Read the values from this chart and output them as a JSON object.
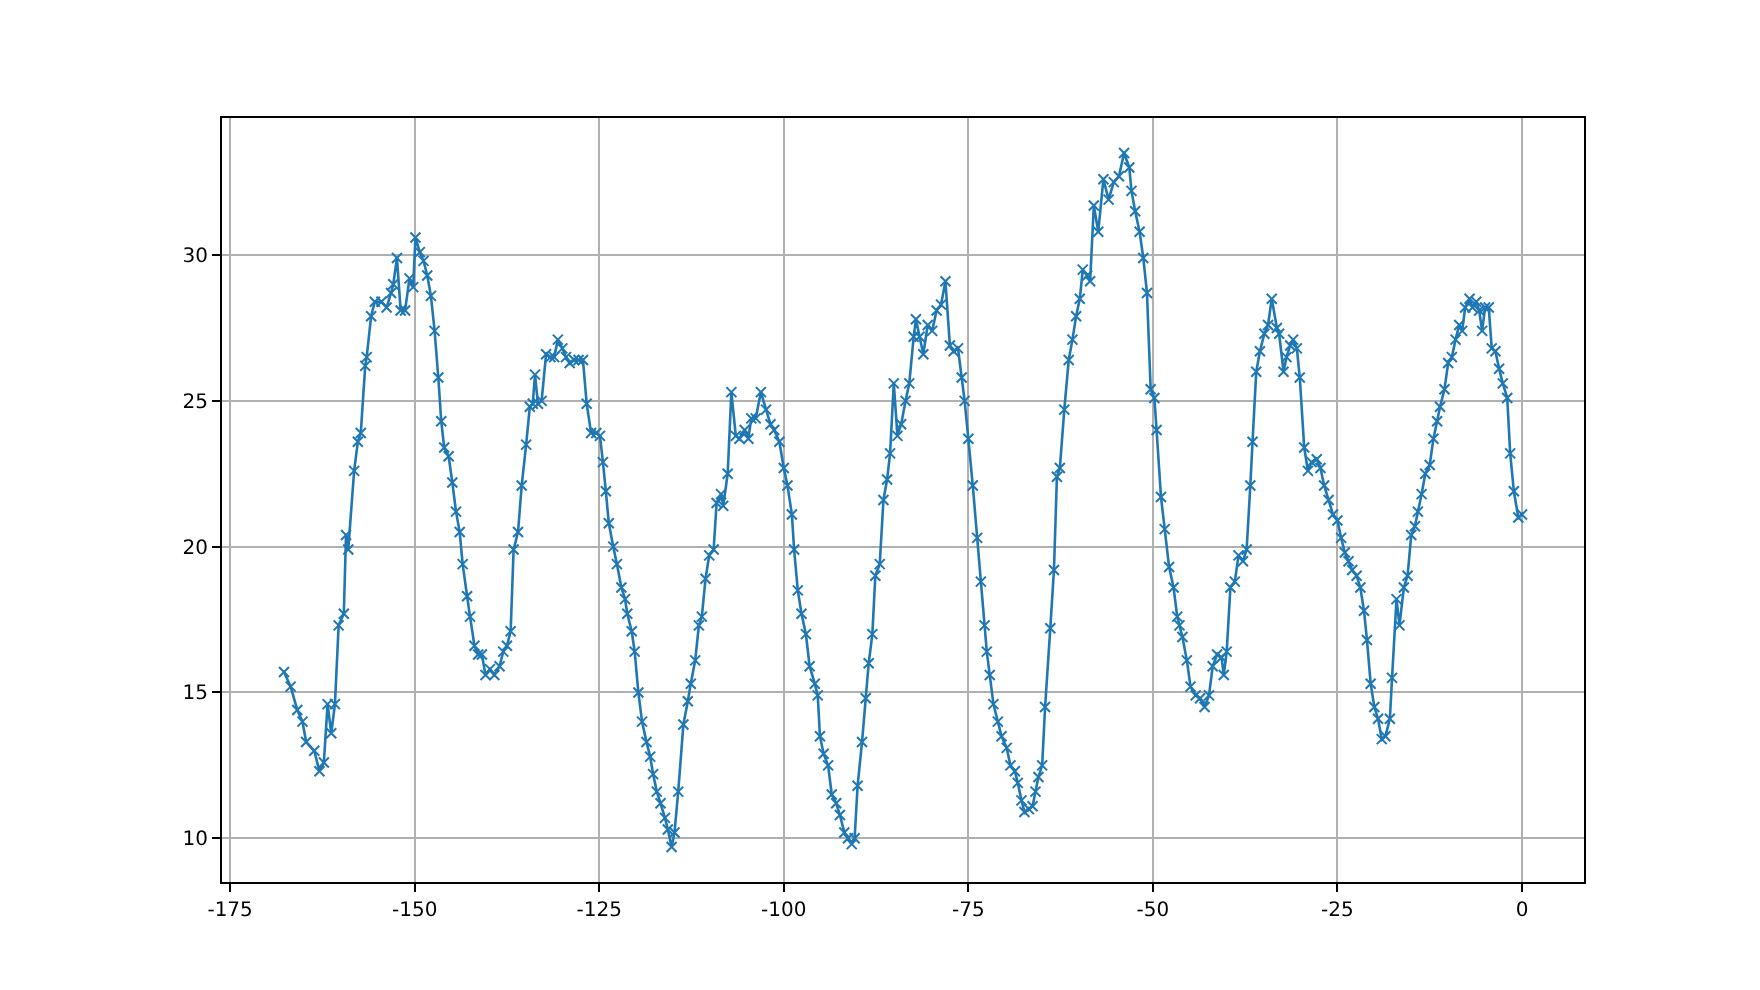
{
  "chart_data": {
    "type": "line",
    "marker": "cross",
    "line_style": "solid",
    "grid": true,
    "xlim": [
      -176.1,
      8.4
    ],
    "ylim": [
      8.5,
      34.7
    ],
    "xticks": [
      -175,
      -150,
      -125,
      -100,
      -75,
      -50,
      -25,
      0
    ],
    "yticks": [
      10,
      15,
      20,
      25,
      30
    ],
    "series": [
      {
        "color": "#1f77b4",
        "x": [
          -167.7,
          -166.8,
          -165.9,
          -165.2,
          -164.7,
          -163.6,
          -162.9,
          -162.3,
          -161.8,
          -161.3,
          -160.8,
          -160.3,
          -159.6,
          -159.3,
          -159.0,
          -158.2,
          -157.7,
          -157.3,
          -156.7,
          -156.5,
          -155.9,
          -155.4,
          -154.5,
          -153.8,
          -153.2,
          -152.9,
          -152.4,
          -151.9,
          -151.3,
          -150.7,
          -150.2,
          -149.9,
          -149.3,
          -148.8,
          -148.3,
          -147.8,
          -147.3,
          -146.8,
          -146.4,
          -146.0,
          -145.4,
          -144.9,
          -144.4,
          -143.9,
          -143.5,
          -142.9,
          -142.5,
          -141.9,
          -141.4,
          -140.9,
          -140.4,
          -139.8,
          -139.2,
          -138.5,
          -138.0,
          -137.5,
          -137.0,
          -136.6,
          -136.0,
          -135.5,
          -134.9,
          -134.4,
          -134.0,
          -133.7,
          -133.3,
          -132.8,
          -132.2,
          -131.6,
          -131.1,
          -130.6,
          -130.0,
          -129.5,
          -129.0,
          -128.4,
          -127.8,
          -127.2,
          -126.7,
          -126.1,
          -125.4,
          -124.9,
          -124.5,
          -124.1,
          -123.7,
          -123.1,
          -122.6,
          -122.0,
          -121.5,
          -121.2,
          -120.6,
          -120.2,
          -119.7,
          -119.2,
          -118.6,
          -118.1,
          -117.7,
          -117.2,
          -116.7,
          -116.1,
          -115.7,
          -115.2,
          -114.8,
          -114.3,
          -113.6,
          -113.0,
          -112.6,
          -112.0,
          -111.5,
          -111.1,
          -110.6,
          -110.1,
          -109.5,
          -109.1,
          -108.5,
          -108.2,
          -107.6,
          -107.1,
          -106.5,
          -106.0,
          -105.3,
          -104.8,
          -104.4,
          -103.8,
          -103.1,
          -102.4,
          -101.8,
          -101.3,
          -100.6,
          -100.0,
          -99.5,
          -98.9,
          -98.6,
          -98.1,
          -97.6,
          -97.0,
          -96.5,
          -95.8,
          -95.4,
          -95.1,
          -94.6,
          -94.0,
          -93.5,
          -92.9,
          -92.4,
          -91.8,
          -91.3,
          -90.8,
          -90.4,
          -90.0,
          -89.4,
          -88.9,
          -88.5,
          -88.0,
          -87.6,
          -87.0,
          -86.5,
          -86.0,
          -85.6,
          -85.1,
          -84.6,
          -84.1,
          -83.5,
          -83.0,
          -82.4,
          -82.1,
          -81.6,
          -81.1,
          -80.5,
          -79.9,
          -79.3,
          -78.7,
          -78.1,
          -77.5,
          -77.0,
          -76.4,
          -75.9,
          -75.5,
          -75.0,
          -74.4,
          -73.8,
          -73.3,
          -72.8,
          -72.5,
          -72.1,
          -71.6,
          -71.0,
          -70.5,
          -69.8,
          -69.3,
          -68.7,
          -68.3,
          -67.8,
          -67.4,
          -66.8,
          -66.3,
          -65.9,
          -65.5,
          -65.0,
          -64.6,
          -63.9,
          -63.4,
          -63.0,
          -62.6,
          -62.0,
          -61.4,
          -60.9,
          -60.4,
          -59.9,
          -59.5,
          -58.9,
          -58.5,
          -58.0,
          -57.4,
          -56.7,
          -56.0,
          -55.3,
          -54.6,
          -53.9,
          -53.2,
          -52.9,
          -52.4,
          -51.8,
          -51.3,
          -50.8,
          -50.3,
          -49.8,
          -49.5,
          -48.9,
          -48.4,
          -47.8,
          -47.2,
          -46.7,
          -46.4,
          -46.0,
          -45.4,
          -44.9,
          -44.2,
          -43.6,
          -43.0,
          -42.4,
          -41.9,
          -41.3,
          -40.7,
          -40.4,
          -40.0,
          -39.5,
          -38.9,
          -38.4,
          -37.8,
          -37.3,
          -36.8,
          -36.5,
          -36.0,
          -35.5,
          -34.9,
          -34.4,
          -33.9,
          -33.2,
          -32.9,
          -32.3,
          -31.9,
          -31.4,
          -31.0,
          -30.5,
          -30.1,
          -29.5,
          -29.0,
          -28.5,
          -27.8,
          -27.3,
          -26.8,
          -26.2,
          -25.6,
          -25.0,
          -24.5,
          -24.0,
          -23.5,
          -23.0,
          -22.4,
          -21.9,
          -21.4,
          -21.0,
          -20.5,
          -20.0,
          -19.5,
          -19.0,
          -18.5,
          -17.9,
          -17.6,
          -17.0,
          -16.6,
          -16.0,
          -15.5,
          -15.0,
          -14.5,
          -14.1,
          -13.6,
          -13.1,
          -12.5,
          -12.0,
          -11.5,
          -11.1,
          -10.5,
          -10.0,
          -9.5,
          -9.0,
          -8.5,
          -8.1,
          -7.7,
          -7.1,
          -6.7,
          -6.2,
          -5.8,
          -5.4,
          -5.0,
          -4.5,
          -4.1,
          -3.6,
          -3.1,
          -2.6,
          -2.0,
          -1.6,
          -1.1,
          -0.5,
          0.0
        ],
        "values": [
          15.7,
          15.2,
          14.4,
          14.0,
          13.3,
          13.0,
          12.3,
          12.6,
          14.6,
          13.6,
          14.6,
          17.3,
          17.7,
          20.4,
          19.9,
          22.6,
          23.6,
          23.9,
          26.2,
          26.5,
          27.9,
          28.4,
          28.4,
          28.2,
          28.7,
          29.0,
          29.9,
          28.1,
          28.1,
          29.2,
          28.9,
          30.6,
          30.1,
          29.8,
          29.3,
          28.6,
          27.4,
          25.8,
          24.3,
          23.4,
          23.1,
          22.2,
          21.2,
          20.5,
          19.4,
          18.3,
          17.6,
          16.6,
          16.3,
          16.3,
          15.6,
          15.8,
          15.6,
          15.9,
          16.4,
          16.6,
          17.1,
          19.9,
          20.5,
          22.1,
          23.5,
          24.8,
          24.9,
          25.9,
          24.9,
          25.0,
          26.6,
          26.5,
          26.5,
          27.1,
          26.8,
          26.5,
          26.3,
          26.4,
          26.4,
          26.4,
          24.9,
          23.9,
          23.9,
          23.8,
          22.9,
          21.9,
          20.8,
          20.0,
          19.4,
          18.6,
          18.2,
          17.7,
          17.1,
          16.4,
          15.0,
          14.0,
          13.3,
          12.8,
          12.2,
          11.6,
          11.2,
          10.7,
          10.3,
          9.7,
          10.2,
          11.6,
          13.9,
          14.7,
          15.3,
          16.1,
          17.3,
          17.6,
          18.9,
          19.7,
          19.9,
          21.5,
          21.8,
          21.4,
          22.5,
          25.3,
          23.8,
          23.7,
          24.0,
          23.7,
          24.4,
          24.4,
          25.3,
          24.7,
          24.2,
          24.0,
          23.6,
          22.7,
          22.1,
          21.1,
          19.9,
          18.5,
          17.7,
          17.0,
          15.9,
          15.3,
          14.9,
          13.5,
          12.9,
          12.5,
          11.5,
          11.2,
          10.8,
          10.2,
          10.0,
          9.8,
          10.0,
          11.8,
          13.3,
          14.8,
          16.0,
          17.0,
          19.0,
          19.4,
          21.6,
          22.3,
          23.2,
          25.6,
          23.8,
          24.2,
          25.0,
          25.6,
          27.2,
          27.8,
          27.2,
          26.6,
          27.6,
          27.4,
          28.1,
          28.3,
          29.1,
          26.9,
          26.7,
          26.8,
          25.8,
          25.0,
          23.7,
          22.1,
          20.3,
          18.8,
          17.3,
          16.4,
          15.6,
          14.6,
          14.0,
          13.5,
          13.1,
          12.5,
          12.3,
          11.9,
          11.3,
          10.9,
          11.0,
          11.1,
          11.6,
          12.1,
          12.5,
          14.5,
          17.2,
          19.2,
          22.4,
          22.7,
          24.7,
          26.4,
          27.1,
          27.9,
          28.5,
          29.5,
          29.3,
          29.1,
          31.7,
          30.8,
          32.6,
          31.9,
          32.5,
          32.7,
          33.5,
          33.0,
          32.2,
          31.5,
          30.8,
          29.9,
          28.7,
          25.4,
          25.1,
          24.0,
          21.7,
          20.6,
          19.3,
          18.6,
          17.6,
          17.3,
          16.9,
          16.1,
          15.2,
          14.9,
          14.8,
          14.5,
          14.9,
          15.9,
          16.3,
          16.2,
          15.6,
          16.4,
          18.6,
          18.8,
          19.7,
          19.5,
          19.9,
          22.1,
          23.6,
          26.0,
          26.7,
          27.3,
          27.6,
          28.5,
          27.5,
          27.3,
          26.0,
          26.5,
          26.9,
          27.1,
          26.8,
          25.8,
          23.4,
          22.6,
          22.9,
          23.0,
          22.7,
          22.1,
          21.6,
          21.1,
          20.9,
          20.3,
          19.8,
          19.5,
          19.2,
          19.0,
          18.6,
          17.8,
          16.8,
          15.3,
          14.5,
          14.1,
          13.4,
          13.5,
          14.1,
          15.5,
          18.2,
          17.3,
          18.6,
          19.0,
          20.4,
          20.7,
          21.2,
          21.8,
          22.5,
          22.8,
          23.7,
          24.3,
          24.8,
          25.4,
          26.3,
          26.5,
          27.1,
          27.6,
          27.4,
          28.2,
          28.5,
          28.2,
          28.4,
          28.1,
          27.4,
          28.2,
          28.2,
          26.8,
          26.7,
          26.1,
          25.6,
          25.1,
          23.2,
          21.9,
          21.0,
          21.1
        ]
      }
    ]
  }
}
